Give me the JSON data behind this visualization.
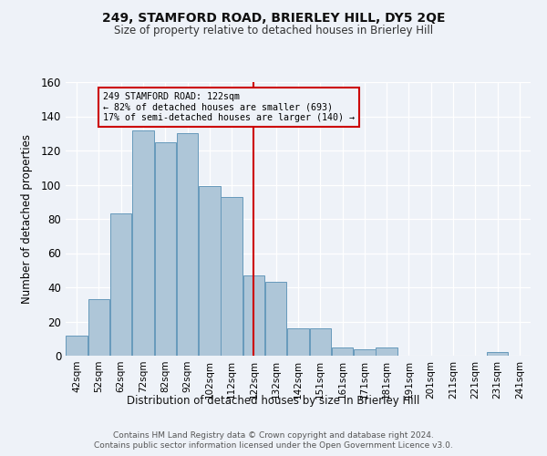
{
  "title": "249, STAMFORD ROAD, BRIERLEY HILL, DY5 2QE",
  "subtitle": "Size of property relative to detached houses in Brierley Hill",
  "xlabel": "Distribution of detached houses by size in Brierley Hill",
  "ylabel": "Number of detached properties",
  "footer1": "Contains HM Land Registry data © Crown copyright and database right 2024.",
  "footer2": "Contains public sector information licensed under the Open Government Licence v3.0.",
  "categories": [
    "42sqm",
    "52sqm",
    "62sqm",
    "72sqm",
    "82sqm",
    "92sqm",
    "102sqm",
    "112sqm",
    "122sqm",
    "132sqm",
    "142sqm",
    "151sqm",
    "161sqm",
    "171sqm",
    "181sqm",
    "191sqm",
    "201sqm",
    "211sqm",
    "221sqm",
    "231sqm",
    "241sqm"
  ],
  "values": [
    12,
    33,
    83,
    132,
    125,
    130,
    99,
    93,
    47,
    43,
    16,
    16,
    5,
    4,
    5,
    0,
    0,
    0,
    0,
    2,
    0
  ],
  "bar_color": "#aec6d8",
  "bar_edge_color": "#6699bb",
  "bg_color": "#eef2f8",
  "grid_color": "#ffffff",
  "vline_index": 8,
  "vline_color": "#cc0000",
  "annotation_line1": "249 STAMFORD ROAD: 122sqm",
  "annotation_line2": "← 82% of detached houses are smaller (693)",
  "annotation_line3": "17% of semi-detached houses are larger (140) →",
  "annotation_box_color": "#cc0000",
  "ylim": [
    0,
    160
  ],
  "yticks": [
    0,
    20,
    40,
    60,
    80,
    100,
    120,
    140,
    160
  ]
}
